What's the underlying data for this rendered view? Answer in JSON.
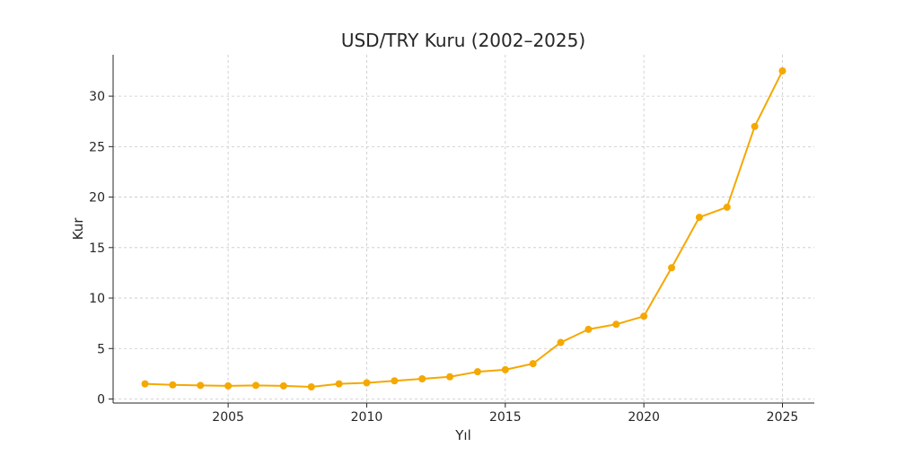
{
  "chart_data": {
    "type": "line",
    "title": "USD/TRY Kuru (2002–2025)",
    "xlabel": "Yıl",
    "ylabel": "Kur",
    "x": [
      2002,
      2003,
      2004,
      2005,
      2006,
      2007,
      2008,
      2009,
      2010,
      2011,
      2012,
      2013,
      2014,
      2015,
      2016,
      2017,
      2018,
      2019,
      2020,
      2021,
      2022,
      2023,
      2024,
      2025
    ],
    "series": [
      {
        "values": [
          1.5,
          1.4,
          1.35,
          1.3,
          1.35,
          1.3,
          1.2,
          1.5,
          1.6,
          1.8,
          2.0,
          2.2,
          2.7,
          2.9,
          3.5,
          5.6,
          6.9,
          7.4,
          8.2,
          13.0,
          18.0,
          19.0,
          27.0,
          32.5
        ],
        "color": "#f5a800"
      }
    ],
    "xlim": [
      2000.85,
      2026.15
    ],
    "ylim": [
      -0.4,
      34.1
    ],
    "x_ticks": [
      2005,
      2010,
      2015,
      2020,
      2025
    ],
    "y_ticks": [
      0,
      5,
      10,
      15,
      20,
      25,
      30
    ],
    "grid": true,
    "legend": "none"
  }
}
